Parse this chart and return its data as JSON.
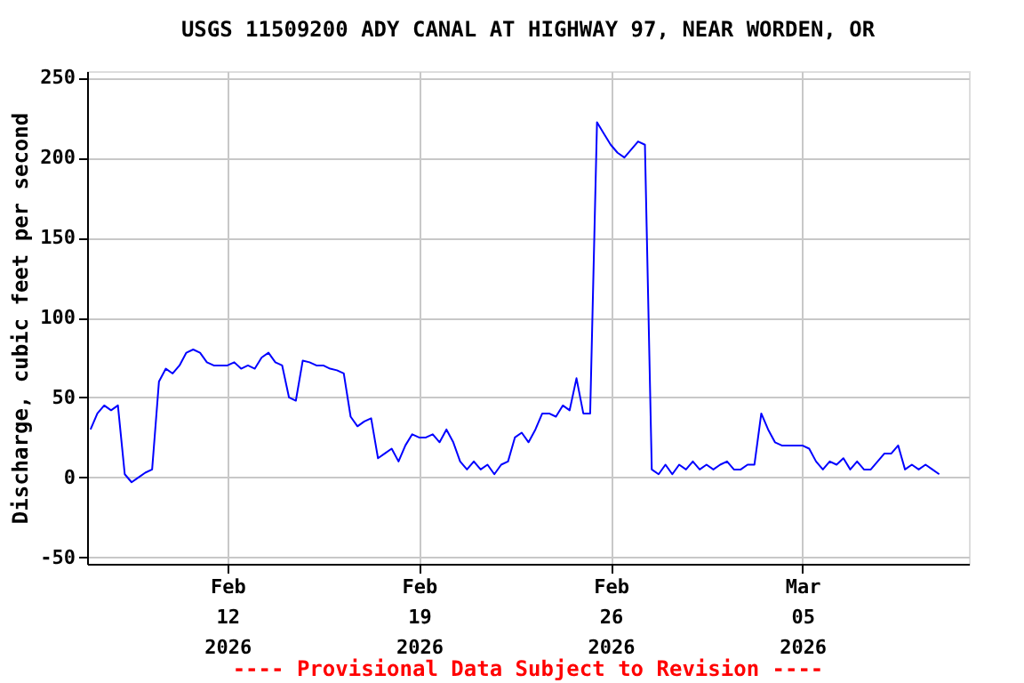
{
  "chart_data": {
    "type": "line",
    "title": "USGS 11509200 ADY CANAL AT HIGHWAY 97, NEAR WORDEN, OR",
    "ylabel": "Discharge, cubic feet per second",
    "annotations": [
      "---- Provisional Data Subject to Revision ----"
    ],
    "x": [
      "2026-02-07T00:00",
      "2026-02-07T06:00",
      "2026-02-07T12:00",
      "2026-02-07T18:00",
      "2026-02-08T00:00",
      "2026-02-08T06:00",
      "2026-02-08T12:00",
      "2026-02-08T18:00",
      "2026-02-09T00:00",
      "2026-02-09T06:00",
      "2026-02-09T12:00",
      "2026-02-09T18:00",
      "2026-02-10T00:00",
      "2026-02-10T06:00",
      "2026-02-10T12:00",
      "2026-02-10T18:00",
      "2026-02-11T00:00",
      "2026-02-11T06:00",
      "2026-02-11T12:00",
      "2026-02-11T18:00",
      "2026-02-12T00:00",
      "2026-02-12T06:00",
      "2026-02-12T12:00",
      "2026-02-12T18:00",
      "2026-02-13T00:00",
      "2026-02-13T06:00",
      "2026-02-13T12:00",
      "2026-02-13T18:00",
      "2026-02-14T00:00",
      "2026-02-14T06:00",
      "2026-02-14T12:00",
      "2026-02-14T18:00",
      "2026-02-15T00:00",
      "2026-02-15T06:00",
      "2026-02-15T12:00",
      "2026-02-15T18:00",
      "2026-02-16T00:00",
      "2026-02-16T06:00",
      "2026-02-16T12:00",
      "2026-02-16T18:00",
      "2026-02-17T00:00",
      "2026-02-17T06:00",
      "2026-02-17T12:00",
      "2026-02-17T18:00",
      "2026-02-18T00:00",
      "2026-02-18T06:00",
      "2026-02-18T12:00",
      "2026-02-18T18:00",
      "2026-02-19T00:00",
      "2026-02-19T06:00",
      "2026-02-19T12:00",
      "2026-02-19T18:00",
      "2026-02-20T00:00",
      "2026-02-20T06:00",
      "2026-02-20T12:00",
      "2026-02-20T18:00",
      "2026-02-21T00:00",
      "2026-02-21T06:00",
      "2026-02-21T12:00",
      "2026-02-21T18:00",
      "2026-02-22T00:00",
      "2026-02-22T06:00",
      "2026-02-22T12:00",
      "2026-02-22T18:00",
      "2026-02-23T00:00",
      "2026-02-23T06:00",
      "2026-02-23T12:00",
      "2026-02-23T18:00",
      "2026-02-24T00:00",
      "2026-02-24T06:00",
      "2026-02-24T12:00",
      "2026-02-24T18:00",
      "2026-02-25T00:00",
      "2026-02-25T06:00",
      "2026-02-25T12:00",
      "2026-02-25T18:00",
      "2026-02-26T00:00",
      "2026-02-26T06:00",
      "2026-02-26T12:00",
      "2026-02-26T18:00",
      "2026-02-27T00:00",
      "2026-02-27T06:00",
      "2026-02-27T12:00",
      "2026-02-27T18:00",
      "2026-02-28T00:00",
      "2026-02-28T06:00",
      "2026-02-28T12:00",
      "2026-02-28T18:00",
      "2026-03-01T00:00",
      "2026-03-01T06:00",
      "2026-03-01T12:00",
      "2026-03-01T18:00",
      "2026-03-02T00:00",
      "2026-03-02T06:00",
      "2026-03-02T12:00",
      "2026-03-02T18:00",
      "2026-03-03T00:00",
      "2026-03-03T06:00",
      "2026-03-03T12:00",
      "2026-03-03T18:00",
      "2026-03-04T00:00",
      "2026-03-04T06:00",
      "2026-03-04T12:00",
      "2026-03-04T18:00",
      "2026-03-05T00:00",
      "2026-03-05T06:00",
      "2026-03-05T12:00",
      "2026-03-05T18:00",
      "2026-03-06T00:00",
      "2026-03-06T06:00",
      "2026-03-06T12:00",
      "2026-03-06T18:00",
      "2026-03-07T00:00",
      "2026-03-07T06:00",
      "2026-03-07T12:00",
      "2026-03-07T18:00",
      "2026-03-08T00:00",
      "2026-03-08T06:00",
      "2026-03-08T12:00",
      "2026-03-08T18:00",
      "2026-03-09T00:00",
      "2026-03-09T06:00",
      "2026-03-09T12:00",
      "2026-03-09T18:00",
      "2026-03-10T00:00"
    ],
    "series": [
      {
        "color": "#0000ff",
        "values": [
          30,
          40,
          45,
          42,
          45,
          2,
          -3,
          0,
          3,
          5,
          60,
          68,
          65,
          70,
          78,
          80,
          78,
          72,
          70,
          70,
          70,
          72,
          68,
          70,
          68,
          75,
          78,
          72,
          70,
          50,
          48,
          73,
          72,
          70,
          70,
          68,
          67,
          65,
          38,
          32,
          35,
          37,
          12,
          15,
          18,
          10,
          20,
          27,
          25,
          25,
          27,
          22,
          30,
          22,
          10,
          5,
          10,
          5,
          8,
          2,
          8,
          10,
          25,
          28,
          22,
          30,
          40,
          40,
          38,
          45,
          42,
          62,
          40,
          40,
          222,
          215,
          208,
          203,
          200,
          205,
          210,
          208,
          5,
          2,
          8,
          2,
          8,
          5,
          10,
          5,
          8,
          5,
          8,
          10,
          5,
          5,
          8,
          8,
          40,
          30,
          22,
          20,
          20,
          20,
          20,
          18,
          10,
          5,
          10,
          8,
          12,
          5,
          10,
          5,
          5,
          10,
          15,
          15,
          20,
          5,
          8,
          5,
          8,
          5,
          2
        ]
      }
    ],
    "xlim": [
      "2026-02-06T21:00",
      "2026-03-11T02:00"
    ],
    "xticks": [
      {
        "value": "2026-02-12T00:00",
        "label": "Feb\n12\n2026"
      },
      {
        "value": "2026-02-19T00:00",
        "label": "Feb\n19\n2026"
      },
      {
        "value": "2026-02-26T00:00",
        "label": "Feb\n26\n2026"
      },
      {
        "value": "2026-03-05T00:00",
        "label": "Mar\n05\n2026"
      }
    ],
    "ylim": [
      -54,
      254
    ],
    "yticks": [
      -50,
      0,
      50,
      100,
      150,
      200,
      250
    ],
    "grid": true,
    "legend": false,
    "marker": "none",
    "line_style": "solid"
  }
}
